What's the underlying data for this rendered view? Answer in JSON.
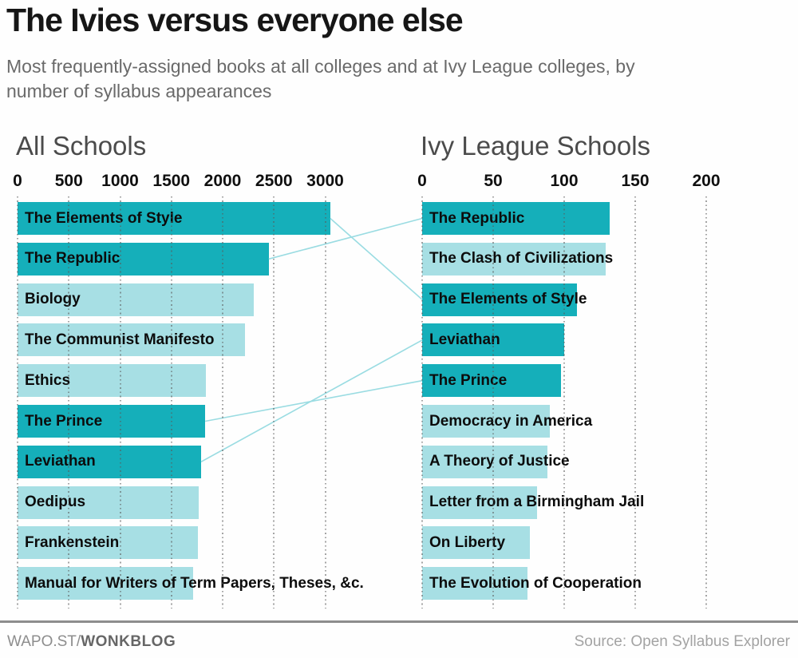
{
  "header": {
    "title": "The Ivies versus everyone else",
    "subtitle": "Most frequently-assigned books at all colleges and at Ivy League colleges, by\nnumber of syllabus appearances"
  },
  "footer": {
    "brand_prefix": "WAPO.ST/",
    "brand_bold": "WONKBLOG",
    "source": "Source: Open Syllabus Explorer"
  },
  "colors": {
    "bar_highlight": "#15AFBA",
    "bar_normal": "#A7DFE4",
    "connector": "#9ADCE2",
    "grid_dot": "#5A5A5A"
  },
  "chart_data": [
    {
      "type": "bar",
      "orientation": "horizontal",
      "title": "All Schools",
      "xticks": [
        0,
        500,
        1000,
        1500,
        2000,
        2500,
        3000
      ],
      "xlim": [
        0,
        3400
      ],
      "grid": true,
      "bars": [
        {
          "label": "The Elements of Style",
          "value": 3050,
          "highlight": true
        },
        {
          "label": "The Republic",
          "value": 2450,
          "highlight": true
        },
        {
          "label": "Biology",
          "value": 2300,
          "highlight": false
        },
        {
          "label": "The Communist Manifesto",
          "value": 2220,
          "highlight": false
        },
        {
          "label": "Ethics",
          "value": 1840,
          "highlight": false
        },
        {
          "label": "The Prince",
          "value": 1830,
          "highlight": true
        },
        {
          "label": "Leviathan",
          "value": 1790,
          "highlight": true
        },
        {
          "label": "Oedipus",
          "value": 1765,
          "highlight": false
        },
        {
          "label": "Frankenstein",
          "value": 1755,
          "highlight": false
        },
        {
          "label": "Manual for Writers of Term Papers, Theses, &c.",
          "value": 1715,
          "highlight": false
        }
      ]
    },
    {
      "type": "bar",
      "orientation": "horizontal",
      "title": "Ivy League Schools",
      "xticks": [
        0,
        50,
        100,
        150,
        200
      ],
      "xlim": [
        0,
        240
      ],
      "grid": true,
      "bars": [
        {
          "label": "The Republic",
          "value": 132,
          "highlight": true
        },
        {
          "label": "The Clash of Civilizations",
          "value": 129,
          "highlight": false
        },
        {
          "label": "The Elements of Style",
          "value": 109,
          "highlight": true
        },
        {
          "label": "Leviathan",
          "value": 100,
          "highlight": true
        },
        {
          "label": "The Prince",
          "value": 98,
          "highlight": true
        },
        {
          "label": "Democracy in America",
          "value": 90,
          "highlight": false
        },
        {
          "label": "A Theory of Justice",
          "value": 88,
          "highlight": false
        },
        {
          "label": "Letter from a Birmingham Jail",
          "value": 81,
          "highlight": false
        },
        {
          "label": "On Liberty",
          "value": 76,
          "highlight": false
        },
        {
          "label": "The Evolution of Cooperation",
          "value": 74,
          "highlight": false
        }
      ]
    }
  ],
  "connections": [
    "The Elements of Style",
    "The Republic",
    "The Prince",
    "Leviathan"
  ]
}
